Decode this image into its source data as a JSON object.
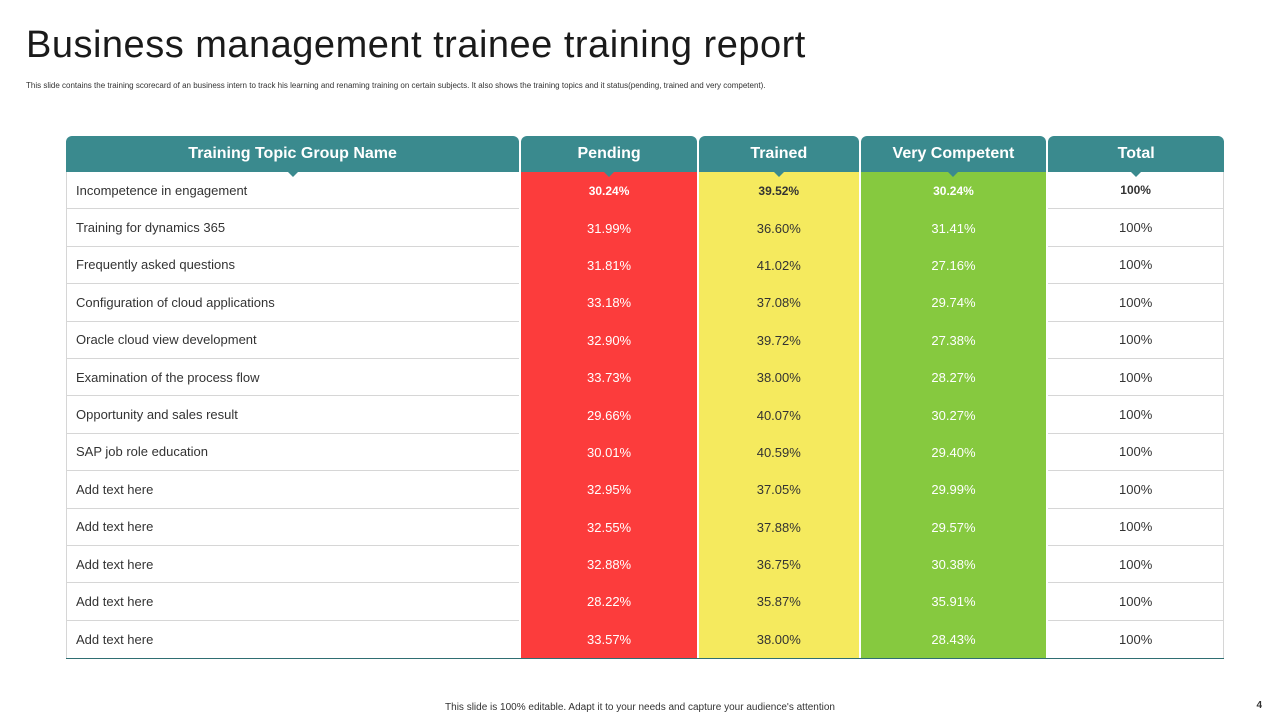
{
  "title": "Business management trainee training report",
  "subtitle": "This slide contains the training scorecard of an business intern to track his learning and renaming training on certain subjects. It also shows the training topics  and it status(pending, trained and  very competent).",
  "headers": {
    "name": "Training Topic Group Name",
    "pending": "Pending",
    "trained": "Trained",
    "competent": "Very Competent",
    "total": "Total"
  },
  "rows": [
    {
      "name": "Incompetence  in engagement",
      "pending": "30.24%",
      "trained": "39.52%",
      "competent": "30.24%",
      "total": "100%"
    },
    {
      "name": "Training  for dynamics 365",
      "pending": "31.99%",
      "trained": "36.60%",
      "competent": "31.41%",
      "total": "100%"
    },
    {
      "name": "Frequently  asked questions",
      "pending": "31.81%",
      "trained": "41.02%",
      "competent": "27.16%",
      "total": "100%"
    },
    {
      "name": "Configuration  of cloud applications",
      "pending": "33.18%",
      "trained": "37.08%",
      "competent": "29.74%",
      "total": "100%"
    },
    {
      "name": "Oracle cloud view  development",
      "pending": "32.90%",
      "trained": "39.72%",
      "competent": "27.38%",
      "total": "100%"
    },
    {
      "name": "Examination of the process flow",
      "pending": "33.73%",
      "trained": "38.00%",
      "competent": "28.27%",
      "total": "100%"
    },
    {
      "name": "Opportunity and sales result",
      "pending": "29.66%",
      "trained": "40.07%",
      "competent": "30.27%",
      "total": "100%"
    },
    {
      "name": "SAP job role  education",
      "pending": "30.01%",
      "trained": "40.59%",
      "competent": "29.40%",
      "total": "100%"
    },
    {
      "name": "Add text here",
      "pending": "32.95%",
      "trained": "37.05%",
      "competent": "29.99%",
      "total": "100%"
    },
    {
      "name": "Add text here",
      "pending": "32.55%",
      "trained": "37.88%",
      "competent": "29.57%",
      "total": "100%"
    },
    {
      "name": "Add text here",
      "pending": "32.88%",
      "trained": "36.75%",
      "competent": "30.38%",
      "total": "100%"
    },
    {
      "name": "Add text here",
      "pending": "28.22%",
      "trained": "35.87%",
      "competent": "35.91%",
      "total": "100%"
    },
    {
      "name": "Add text here",
      "pending": "33.57%",
      "trained": "38.00%",
      "competent": "28.43%",
      "total": "100%"
    }
  ],
  "colors": {
    "header": "#3a8a8e",
    "pending": "#fc3c3c",
    "trained": "#f5ea5e",
    "competent": "#86c93f"
  },
  "footer": "This slide is 100% editable.  Adapt it to your needs and capture your audience's attention",
  "page_number": "4"
}
